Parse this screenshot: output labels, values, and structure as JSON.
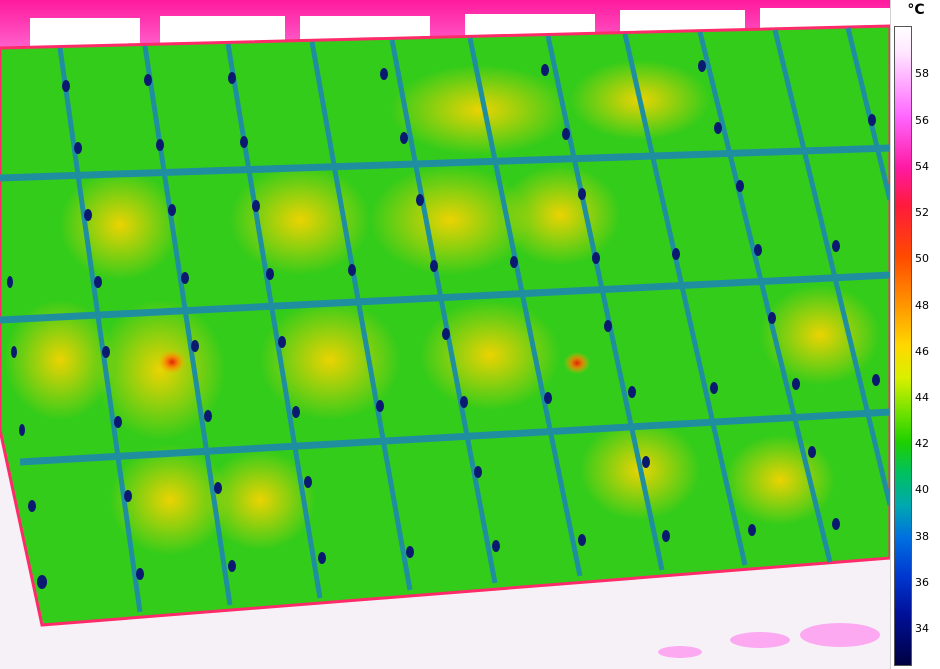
{
  "scale": {
    "unit": "°C",
    "ticks": [
      "58",
      "56",
      "54",
      "52",
      "50",
      "48",
      "46",
      "44",
      "42",
      "40",
      "38",
      "36",
      "34"
    ]
  }
}
